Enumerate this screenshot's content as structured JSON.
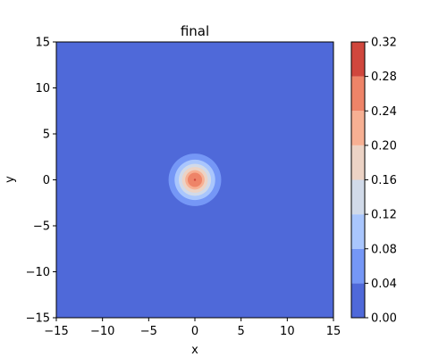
{
  "chart_data": {
    "type": "heatmap",
    "title": "final",
    "xlabel": "x",
    "ylabel": "y",
    "xlim": [
      -15,
      15
    ],
    "ylim": [
      -15,
      15
    ],
    "x_ticks": [
      -15,
      -10,
      -5,
      0,
      5,
      10,
      15
    ],
    "y_ticks": [
      -15,
      -10,
      -5,
      0,
      5,
      10,
      15
    ],
    "x_tick_labels": [
      "−15",
      "−10",
      "−5",
      "0",
      "5",
      "10",
      "15"
    ],
    "y_tick_labels": [
      "−15",
      "−10",
      "−5",
      "0",
      "5",
      "10",
      "15"
    ],
    "colorbar": {
      "levels": [
        0.0,
        0.04,
        0.08,
        0.12,
        0.16,
        0.2,
        0.24,
        0.28,
        0.32
      ],
      "tick_labels": [
        "0.00",
        "0.04",
        "0.08",
        "0.12",
        "0.16",
        "0.20",
        "0.24",
        "0.28",
        "0.32"
      ],
      "colors": [
        "#4f69d9",
        "#7597f6",
        "#a9c6fd",
        "#d1dae9",
        "#ecd3c5",
        "#f7b093",
        "#ee8468",
        "#d0473d"
      ]
    },
    "contour_bands": [
      {
        "level_min": 0.04,
        "level_max": 0.08,
        "radius": 2.85
      },
      {
        "level_min": 0.08,
        "level_max": 0.12,
        "radius": 2.2
      },
      {
        "level_min": 0.12,
        "level_max": 0.16,
        "radius": 1.75
      },
      {
        "level_min": 0.16,
        "level_max": 0.2,
        "radius": 1.4
      },
      {
        "level_min": 0.2,
        "level_max": 0.24,
        "radius": 1.05
      },
      {
        "level_min": 0.24,
        "level_max": 0.28,
        "radius": 0.78
      },
      {
        "level_min": 0.28,
        "level_max": 0.32,
        "radius": 0.12
      }
    ],
    "peak": {
      "x": 0,
      "y": 0
    }
  }
}
